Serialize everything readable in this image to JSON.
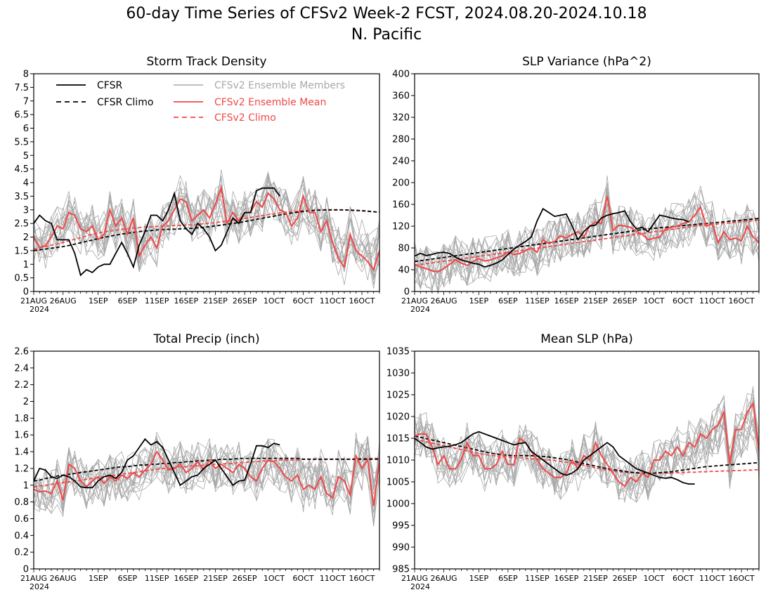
{
  "title_line1": "60-day Time Series of CFSv2 Week-2 FCST, 2024.08.20-2024.10.18",
  "title_line2": "N. Pacific",
  "x_tick_labels": [
    "21AUG",
    "26AUG",
    "1SEP",
    "6SEP",
    "11SEP",
    "16SEP",
    "21SEP",
    "26SEP",
    "1OCT",
    "6OCT",
    "11OCT",
    "16OCT"
  ],
  "x_year_label": "2024",
  "legend": {
    "cfsr": "CFSR",
    "cfsr_climo": "CFSR Climo",
    "members": "CFSv2 Ensemble Members",
    "mean": "CFSv2 Ensemble Mean",
    "cfsv2_climo": "CFSv2 Climo"
  },
  "colors": {
    "cfsr": "#000000",
    "members": "#a8a8a8",
    "mean": "#f04848",
    "cfsv2_climo": "#f04848"
  },
  "chart_data": [
    {
      "type": "line",
      "title": "Storm Track Density",
      "ylim": [
        0,
        8
      ],
      "yticks": [
        0,
        0.5,
        1,
        1.5,
        2,
        2.5,
        3,
        3.5,
        4,
        4.5,
        5,
        5.5,
        6,
        6.5,
        7,
        7.5,
        8
      ],
      "grid": false,
      "legend_position": "top-left",
      "series": [
        {
          "name": "CFSR",
          "values": [
            2.5,
            2.8,
            2.6,
            2.5,
            1.9,
            1.9,
            1.9,
            1.4,
            0.6,
            0.8,
            0.7,
            0.9,
            1.0,
            1.0,
            1.4,
            1.8,
            1.4,
            0.9,
            1.7,
            2.2,
            2.8,
            2.8,
            2.6,
            3.0,
            3.6,
            2.6,
            2.3,
            2.1,
            2.5,
            2.3,
            2.0,
            1.5,
            1.7,
            2.2,
            2.7,
            2.5,
            2.9,
            2.9,
            3.7,
            3.8,
            3.8,
            3.8,
            3.5
          ]
        },
        {
          "name": "CFSR Climo",
          "values": [
            1.5,
            1.53,
            1.56,
            1.59,
            1.62,
            1.65,
            1.69,
            1.74,
            1.79,
            1.84,
            1.89,
            1.94,
            1.99,
            2.03,
            2.07,
            2.11,
            2.14,
            2.17,
            2.2,
            2.22,
            2.24,
            2.26,
            2.27,
            2.28,
            2.29,
            2.3,
            2.31,
            2.32,
            2.34,
            2.36,
            2.38,
            2.41,
            2.44,
            2.47,
            2.5,
            2.53,
            2.57,
            2.61,
            2.65,
            2.69,
            2.73,
            2.77,
            2.81,
            2.85,
            2.88,
            2.91,
            2.94,
            2.96,
            2.98,
            2.99,
            3.0,
            3.0,
            3.0,
            3.0,
            2.99,
            2.98,
            2.97,
            2.95,
            2.93,
            2.91
          ]
        },
        {
          "name": "CFSv2 Ensemble Mean",
          "values": [
            2.0,
            1.6,
            1.7,
            2.0,
            2.4,
            2.3,
            2.9,
            2.8,
            2.3,
            2.2,
            2.4,
            1.9,
            2.1,
            3.0,
            2.4,
            2.7,
            2.1,
            2.7,
            1.3,
            1.7,
            2.0,
            1.6,
            2.4,
            2.6,
            3.0,
            3.4,
            3.3,
            2.6,
            2.8,
            3.0,
            2.7,
            3.2,
            3.8,
            2.5,
            2.9,
            2.6,
            2.9,
            2.9,
            3.3,
            3.1,
            3.6,
            3.4,
            3.0,
            2.9,
            2.4,
            2.7,
            3.5,
            2.9,
            2.9,
            2.2,
            2.6,
            1.8,
            1.2,
            0.9,
            2.1,
            1.5,
            1.3,
            1.1,
            0.8,
            1.5
          ]
        },
        {
          "name": "CFSv2 Climo",
          "values": [
            1.55,
            1.6,
            1.65,
            1.7,
            1.75,
            1.8,
            1.86,
            1.92,
            1.98,
            2.04,
            2.1,
            2.15,
            2.19,
            2.22,
            2.25,
            2.28,
            2.31,
            2.33,
            2.35,
            2.37,
            2.38,
            2.39,
            2.4,
            2.41,
            2.42,
            2.43,
            2.44,
            2.45,
            2.47,
            2.49,
            2.51,
            2.53,
            2.56,
            2.59,
            2.62,
            2.65,
            2.68,
            2.72,
            2.75,
            2.79,
            2.82,
            2.85,
            2.88,
            2.91,
            2.93,
            2.95,
            2.97,
            2.98,
            2.99,
            3.0,
            3.0,
            3.0,
            3.0,
            2.99,
            2.98,
            2.97,
            2.96,
            2.95,
            2.93,
            2.91
          ]
        }
      ]
    },
    {
      "type": "line",
      "title": "SLP Variance (hPa^2)",
      "ylim": [
        0,
        400
      ],
      "yticks": [
        0,
        40,
        80,
        120,
        160,
        200,
        240,
        280,
        320,
        360,
        400
      ],
      "grid": false,
      "series": [
        {
          "name": "CFSR",
          "values": [
            65,
            70,
            66,
            68,
            71,
            72,
            70,
            63,
            58,
            55,
            52,
            50,
            45,
            48,
            52,
            58,
            68,
            78,
            85,
            92,
            100,
            130,
            152,
            145,
            138,
            140,
            142,
            120,
            95,
            110,
            120,
            122,
            135,
            140,
            143,
            145,
            148,
            128,
            115,
            118,
            110,
            125,
            140,
            138,
            135,
            133,
            132,
            128
          ]
        },
        {
          "name": "CFSR Climo",
          "values": [
            55,
            56.5,
            58,
            59.5,
            61,
            62.5,
            64,
            65.5,
            67,
            68.5,
            70,
            71.5,
            73,
            74.5,
            76,
            77.5,
            79,
            80.5,
            82,
            83.5,
            85,
            86.5,
            88,
            89.5,
            91,
            92.5,
            94,
            95.5,
            97,
            98.5,
            100,
            101.5,
            103,
            104.5,
            106,
            107.5,
            109,
            110.5,
            112,
            113.5,
            115,
            116,
            117,
            118,
            119,
            120,
            121,
            122,
            123,
            124,
            125,
            126,
            127,
            128,
            129,
            130,
            131,
            132,
            133,
            134
          ]
        },
        {
          "name": "CFSv2 Ensemble Mean",
          "values": [
            50,
            45,
            42,
            38,
            36,
            42,
            50,
            58,
            52,
            48,
            55,
            60,
            56,
            58,
            62,
            65,
            72,
            68,
            70,
            75,
            80,
            72,
            95,
            88,
            92,
            102,
            98,
            105,
            110,
            100,
            120,
            128,
            125,
            175,
            112,
            122,
            120,
            118,
            110,
            105,
            95,
            98,
            100,
            115,
            118,
            120,
            125,
            128,
            140,
            155,
            120,
            125,
            90,
            110,
            95,
            98,
            93,
            120,
            100,
            90
          ]
        },
        {
          "name": "CFSv2 Climo",
          "values": [
            48,
            49.5,
            51,
            52.5,
            54,
            55.5,
            57,
            58.5,
            60,
            61.5,
            63,
            64.5,
            66,
            67.5,
            69,
            70.5,
            72,
            73.5,
            75,
            76.5,
            78,
            79.5,
            81,
            82.5,
            84,
            85.5,
            87,
            88.5,
            90,
            91.5,
            93,
            94.5,
            96,
            97.5,
            99,
            100.5,
            102,
            103.5,
            105,
            106.5,
            108,
            109.5,
            111,
            112.5,
            114,
            115.5,
            117,
            118.5,
            120,
            121,
            122,
            123,
            124,
            125,
            126,
            127,
            128,
            129,
            130,
            131
          ]
        }
      ]
    },
    {
      "type": "line",
      "title": "Total Precip (inch)",
      "ylim": [
        0,
        2.6
      ],
      "yticks": [
        0,
        0.2,
        0.4,
        0.6,
        0.8,
        1,
        1.2,
        1.4,
        1.6,
        1.8,
        2,
        2.2,
        2.4,
        2.6
      ],
      "grid": false,
      "series": [
        {
          "name": "CFSR",
          "values": [
            1.05,
            1.2,
            1.18,
            1.1,
            1.08,
            1.12,
            1.1,
            1.05,
            0.98,
            0.97,
            0.97,
            1.05,
            1.1,
            1.12,
            1.08,
            1.15,
            1.3,
            1.35,
            1.45,
            1.55,
            1.48,
            1.52,
            1.45,
            1.3,
            1.15,
            1.0,
            1.05,
            1.1,
            1.12,
            1.2,
            1.25,
            1.3,
            1.2,
            1.1,
            1.0,
            1.05,
            1.06,
            1.25,
            1.47,
            1.47,
            1.45,
            1.5,
            1.48
          ]
        },
        {
          "name": "CFSR Climo",
          "values": [
            1.05,
            1.06,
            1.08,
            1.09,
            1.11,
            1.12,
            1.13,
            1.14,
            1.15,
            1.16,
            1.17,
            1.18,
            1.19,
            1.2,
            1.21,
            1.22,
            1.22,
            1.23,
            1.24,
            1.24,
            1.25,
            1.25,
            1.26,
            1.26,
            1.27,
            1.27,
            1.28,
            1.28,
            1.29,
            1.29,
            1.3,
            1.3,
            1.31,
            1.31,
            1.31,
            1.32,
            1.32,
            1.32,
            1.32,
            1.32,
            1.32,
            1.32,
            1.32,
            1.32,
            1.32,
            1.32,
            1.31,
            1.31,
            1.31,
            1.31,
            1.31,
            1.31,
            1.31,
            1.31,
            1.31,
            1.31,
            1.31,
            1.31,
            1.31,
            1.31
          ]
        },
        {
          "name": "CFSv2 Ensemble Mean",
          "values": [
            0.95,
            0.92,
            0.93,
            0.9,
            1.05,
            0.82,
            1.25,
            1.2,
            1.05,
            0.98,
            1.05,
            1.1,
            1.02,
            1.1,
            1.05,
            1.12,
            1.08,
            1.15,
            1.1,
            1.18,
            1.25,
            1.4,
            1.3,
            1.18,
            1.2,
            1.25,
            1.15,
            1.2,
            1.28,
            1.18,
            1.3,
            1.2,
            1.25,
            1.2,
            1.15,
            1.25,
            1.2,
            1.1,
            1.05,
            1.2,
            1.3,
            1.28,
            1.2,
            1.1,
            1.05,
            1.12,
            0.95,
            1.0,
            0.95,
            1.1,
            0.9,
            0.85,
            1.1,
            1.05,
            0.88,
            1.35,
            1.2,
            1.3,
            0.75,
            1.3
          ]
        },
        {
          "name": "CFSv2 Climo",
          "values": [
            0.98,
            0.99,
            1.0,
            1.01,
            1.02,
            1.03,
            1.04,
            1.05,
            1.06,
            1.07,
            1.08,
            1.09,
            1.1,
            1.11,
            1.12,
            1.13,
            1.14,
            1.15,
            1.16,
            1.17,
            1.18,
            1.19,
            1.2,
            1.2,
            1.21,
            1.22,
            1.22,
            1.23,
            1.23,
            1.24,
            1.24,
            1.25,
            1.25,
            1.26,
            1.26,
            1.27,
            1.27,
            1.28,
            1.28,
            1.29,
            1.29,
            1.29,
            1.3,
            1.3,
            1.3,
            1.3,
            1.31,
            1.31,
            1.31,
            1.31,
            1.31,
            1.31,
            1.31,
            1.31,
            1.31,
            1.31,
            1.32,
            1.32,
            1.32,
            1.32
          ]
        }
      ]
    },
    {
      "type": "line",
      "title": "Mean SLP (hPa)",
      "ylim": [
        985,
        1035
      ],
      "yticks": [
        985,
        990,
        995,
        1000,
        1005,
        1010,
        1015,
        1020,
        1025,
        1030,
        1035
      ],
      "grid": false,
      "series": [
        {
          "name": "CFSR",
          "values": [
            1015,
            1014,
            1013,
            1012.5,
            1012.8,
            1013,
            1013.2,
            1013.5,
            1014,
            1015,
            1016,
            1016.5,
            1016,
            1015.5,
            1015,
            1014.5,
            1014,
            1013.5,
            1013.8,
            1014,
            1012,
            1011,
            1010,
            1009,
            1008,
            1007,
            1006.5,
            1007,
            1008,
            1010,
            1011,
            1012,
            1013,
            1014,
            1013,
            1011,
            1010,
            1009,
            1008,
            1007.5,
            1007,
            1006.5,
            1006,
            1005.8,
            1006,
            1005.5,
            1004.8,
            1004.5,
            1004.5
          ]
        },
        {
          "name": "CFSR Climo",
          "values": [
            1015.5,
            1015.2,
            1014.9,
            1014.6,
            1014.3,
            1014,
            1013.7,
            1013.4,
            1013.1,
            1012.8,
            1012.5,
            1012.2,
            1011.9,
            1011.6,
            1011.4,
            1011.2,
            1011.1,
            1011,
            1011,
            1011,
            1011,
            1010.9,
            1010.8,
            1010.7,
            1010.5,
            1010.3,
            1010.1,
            1009.8,
            1009.5,
            1009.2,
            1008.9,
            1008.6,
            1008.3,
            1008,
            1007.8,
            1007.6,
            1007.4,
            1007.2,
            1007.1,
            1007,
            1007,
            1007,
            1007.1,
            1007.2,
            1007.3,
            1007.5,
            1007.7,
            1007.9,
            1008.1,
            1008.3,
            1008.5,
            1008.6,
            1008.7,
            1008.8,
            1008.9,
            1009,
            1009.1,
            1009.2,
            1009.3,
            1009.4
          ]
        },
        {
          "name": "CFSv2 Ensemble Mean",
          "values": [
            1015.5,
            1016,
            1016,
            1013,
            1009,
            1011,
            1008,
            1008,
            1010,
            1014,
            1011,
            1011,
            1008,
            1008,
            1009,
            1012,
            1009,
            1009,
            1015,
            1014,
            1012,
            1010,
            1008,
            1007,
            1006,
            1006,
            1007,
            1010,
            1008,
            1011,
            1010,
            1014,
            1011,
            1009,
            1007,
            1005,
            1004,
            1006,
            1005,
            1007,
            1006,
            1010,
            1010,
            1012,
            1011,
            1013,
            1011,
            1014,
            1013,
            1016,
            1015,
            1017,
            1018,
            1021,
            1009,
            1017,
            1017,
            1021,
            1023,
            1012
          ]
        },
        {
          "name": "CFSv2 Climo",
          "values": [
            1014.8,
            1014.5,
            1014.2,
            1013.9,
            1013.6,
            1013.3,
            1013,
            1012.7,
            1012.4,
            1012.1,
            1011.8,
            1011.5,
            1011.3,
            1011.1,
            1010.9,
            1010.8,
            1010.7,
            1010.6,
            1010.5,
            1010.4,
            1010.3,
            1010.2,
            1010.1,
            1010,
            1009.9,
            1009.7,
            1009.5,
            1009.3,
            1009.1,
            1008.8,
            1008.5,
            1008.2,
            1007.9,
            1007.7,
            1007.5,
            1007.3,
            1007.2,
            1007.1,
            1007,
            1007,
            1007,
            1007,
            1007,
            1007,
            1007,
            1007.1,
            1007.1,
            1007.2,
            1007.2,
            1007.3,
            1007.3,
            1007.4,
            1007.4,
            1007.5,
            1007.5,
            1007.6,
            1007.6,
            1007.7,
            1007.7,
            1007.8
          ]
        }
      ]
    }
  ]
}
